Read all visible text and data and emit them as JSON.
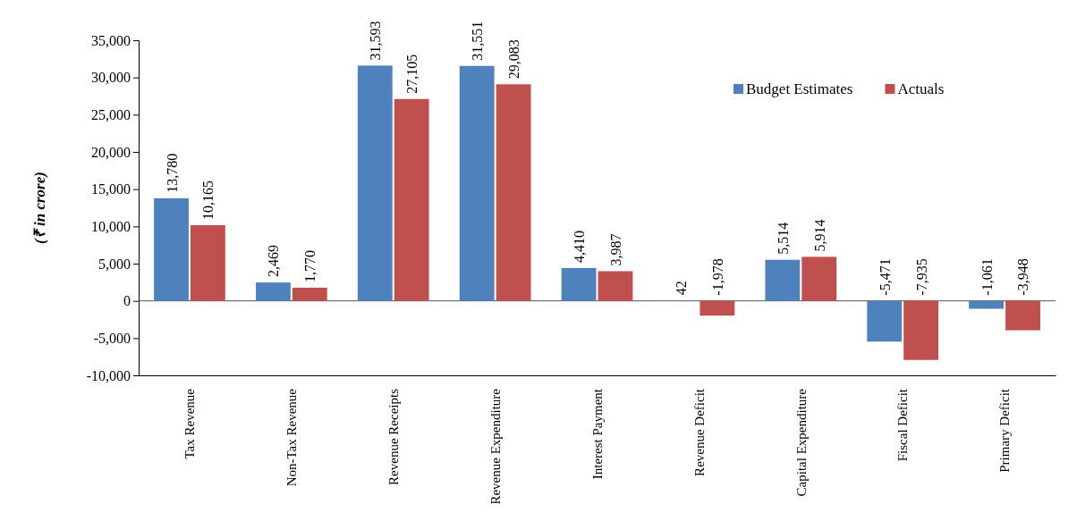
{
  "chart_data": {
    "type": "bar",
    "ylabel": "(₹ in crore)",
    "categories": [
      "Tax Revenue",
      "Non-Tax Revenue",
      "Revenue Receipts",
      "Revenue Expenditure",
      "Interest Payment",
      "Revenue  Deficit",
      "Capital Expenditure",
      "Fiscal Deficit",
      "Primary Deficit"
    ],
    "series": [
      {
        "name": "Budget Estimates",
        "color": "#4f81bd",
        "values": [
          13780,
          2469,
          31593,
          31551,
          4410,
          42,
          5514,
          -5471,
          -1061
        ],
        "value_labels": [
          "13,780",
          "2,469",
          "31,593",
          "31,551",
          "4,410",
          "42",
          "5,514",
          "-5,471",
          "-1,061"
        ]
      },
      {
        "name": "Actuals",
        "color": "#c0504d",
        "values": [
          10165,
          1770,
          27105,
          29083,
          3987,
          -1978,
          5914,
          -7935,
          -3948
        ],
        "value_labels": [
          "10,165",
          "1,770",
          "27,105",
          "29,083",
          "3,987",
          "-1,978",
          "5,914",
          "-7,935",
          "-3,948"
        ]
      }
    ],
    "ylim": [
      -10000,
      35000
    ],
    "yticks": [
      {
        "value": -10000,
        "label": "-10,000"
      },
      {
        "value": -5000,
        "label": "-5,000"
      },
      {
        "value": 0,
        "label": "0"
      },
      {
        "value": 5000,
        "label": "5,000"
      },
      {
        "value": 10000,
        "label": "10,000"
      },
      {
        "value": 15000,
        "label": "15,000"
      },
      {
        "value": 20000,
        "label": "20,000"
      },
      {
        "value": 25000,
        "label": "25,000"
      },
      {
        "value": 30000,
        "label": "30,000"
      },
      {
        "value": 35000,
        "label": "35,000"
      }
    ],
    "legend": "top right"
  }
}
